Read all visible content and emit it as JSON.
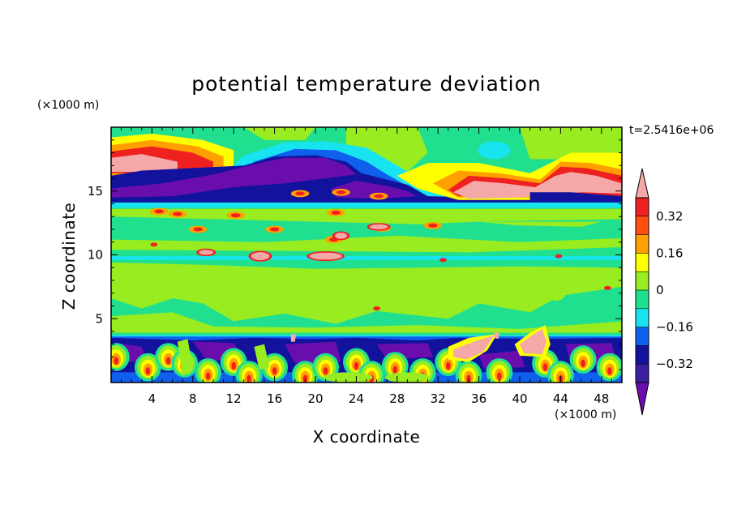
{
  "chart_data": {
    "type": "heatmap",
    "title": "potential temperature deviation",
    "xlabel": "X coordinate",
    "ylabel": "Z coordinate",
    "x_unit": "(×1000 m)",
    "y_unit": "(×1000 m)",
    "time_label": "t=2.5416e+06",
    "xlim": [
      0,
      50
    ],
    "ylim": [
      0,
      20
    ],
    "x_ticks": [
      4,
      8,
      12,
      16,
      20,
      24,
      28,
      32,
      36,
      40,
      44,
      48
    ],
    "x_tick_labels": [
      "4",
      "8",
      "12",
      "16",
      "20",
      "24",
      "28",
      "32",
      "36",
      "40",
      "44",
      "48"
    ],
    "y_ticks": [
      5,
      10,
      15
    ],
    "y_tick_labels": [
      "5",
      "10",
      "15"
    ],
    "colorbar": {
      "levels": [
        -0.4,
        -0.32,
        -0.24,
        -0.16,
        -0.08,
        0,
        0.08,
        0.16,
        0.24,
        0.32,
        0.4
      ],
      "labeled_levels": [
        0.32,
        0.16,
        0,
        -0.16,
        -0.32
      ],
      "labels": [
        "0.32",
        "0.16",
        "0",
        "−0.16",
        "−0.32"
      ],
      "colors": [
        "#6a0dad",
        "#3a1fa0",
        "#12129c",
        "#1060ee",
        "#18e4f0",
        "#20e090",
        "#98ec20",
        "#ffff00",
        "#ffa000",
        "#ff5010",
        "#ee2020",
        "#f5a8a8"
      ],
      "extend": "both"
    },
    "fields": {
      "background": "#20e090",
      "neutral_positive": "#98ec20",
      "pink": "#f5a8a8",
      "red": "#ee2020",
      "orange": "#ffa000",
      "yellow": "#ffff00",
      "cyan": "#18e4f0",
      "blue": "#1060ee",
      "navy": "#12129c",
      "purple": "#6a0dad"
    }
  }
}
